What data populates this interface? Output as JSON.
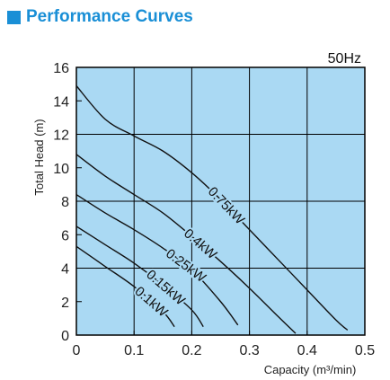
{
  "header": {
    "title": "Performance Curves",
    "accent": "#1a8fd6"
  },
  "chart_data": {
    "type": "line",
    "title": "",
    "annotation": "50Hz",
    "xlabel": "Capacity (m³/min)",
    "ylabel": "Total Head (m)",
    "xlim": [
      0,
      0.5
    ],
    "ylim": [
      0,
      16
    ],
    "xticks": [
      "0",
      "0.1",
      "0.2",
      "0.3",
      "0.4",
      "0.5"
    ],
    "yticks": [
      "0",
      "2",
      "4",
      "6",
      "8",
      "10",
      "12",
      "14",
      "16"
    ],
    "grid": true,
    "plot_background": "#aad9f3",
    "series": [
      {
        "name": "0.75kW",
        "x": [
          0,
          0.05,
          0.1,
          0.15,
          0.2,
          0.25,
          0.3,
          0.35,
          0.4,
          0.45,
          0.47
        ],
        "y": [
          14.9,
          12.9,
          11.9,
          11.0,
          9.7,
          8.1,
          6.3,
          4.5,
          2.7,
          0.9,
          0.3
        ]
      },
      {
        "name": "0.4kW",
        "x": [
          0,
          0.05,
          0.1,
          0.15,
          0.2,
          0.25,
          0.3,
          0.35,
          0.38
        ],
        "y": [
          10.8,
          9.5,
          8.4,
          7.3,
          5.9,
          4.4,
          2.8,
          1.1,
          0.1
        ]
      },
      {
        "name": "0.25kW",
        "x": [
          0,
          0.05,
          0.1,
          0.15,
          0.2,
          0.25,
          0.28
        ],
        "y": [
          8.4,
          7.3,
          6.3,
          5.2,
          3.9,
          2.0,
          0.6
        ]
      },
      {
        "name": "0.15kW",
        "x": [
          0,
          0.05,
          0.1,
          0.15,
          0.2,
          0.22
        ],
        "y": [
          6.5,
          5.4,
          4.3,
          3.0,
          1.5,
          0.5
        ]
      },
      {
        "name": "0.1kW",
        "x": [
          0,
          0.05,
          0.1,
          0.15,
          0.17
        ],
        "y": [
          5.3,
          4.1,
          2.9,
          1.4,
          0.5
        ]
      }
    ]
  }
}
